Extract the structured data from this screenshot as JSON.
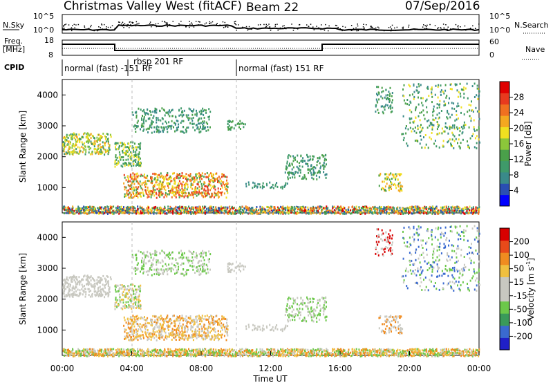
{
  "header": {
    "title": "Christmas Valley West (fitACF)",
    "beam": "Beam 22",
    "date": "07/Sep/2016"
  },
  "panels": {
    "nsky": {
      "label": "N.Sky",
      "ticks": [
        "10^5",
        "10^0"
      ],
      "right_ticks": [
        "10^5",
        "10^0"
      ],
      "right_label": "N.Search"
    },
    "freq": {
      "label_line1": "Freq.",
      "label_line2": "[MHz]",
      "ticks": [
        "18",
        "8"
      ],
      "right_ticks": [
        "60",
        "0"
      ],
      "right_label": "Nave"
    },
    "cpid": {
      "label": "CPID",
      "segments": [
        {
          "text": "normal (fast) -151 RF"
        },
        {
          "text": "rbsp 201 RF"
        },
        {
          "text": "normal (fast) 151 RF"
        }
      ]
    }
  },
  "colorbars": {
    "power": {
      "label": "Power [dB]",
      "ticks": [
        "28",
        "24",
        "20",
        "16",
        "12",
        "8",
        "4"
      ],
      "colors": [
        "#0000ff",
        "#2a4eb2",
        "#3a8a8a",
        "#3f9a6a",
        "#4aa04a",
        "#8cc63a",
        "#f0e020",
        "#f4a820",
        "#f07020",
        "#e83a1e",
        "#e00000"
      ]
    },
    "velocity": {
      "label": "Velocity [m s",
      "label_sup": "-1",
      "label_end": "]",
      "ticks": [
        "200",
        "100",
        "50",
        "15",
        "-15",
        "-50",
        "-100",
        "-200"
      ],
      "colors": [
        "#2020c8",
        "#3a6ad0",
        "#3a9a5a",
        "#6cc84a",
        "#c8c8c0",
        "#c8c8c0",
        "#f0c040",
        "#f08c20",
        "#e84a1a",
        "#d80000"
      ]
    }
  },
  "chart_data": [
    {
      "type": "heatmap",
      "title": "Power",
      "ylabel": "Slant Range [km]",
      "xlabel": "",
      "x_range_hours": [
        0,
        24
      ],
      "ylim": [
        180,
        4500
      ],
      "yticks": [
        "1000",
        "2000",
        "3000",
        "4000"
      ],
      "xticks": [
        "00:00",
        "04:00",
        "08:00",
        "12:00",
        "16:00",
        "20:00",
        "00:00"
      ],
      "colorbar": "Power [dB]"
    },
    {
      "type": "heatmap",
      "title": "Velocity",
      "ylabel": "Slant Range [km]",
      "xlabel": "Time UT",
      "x_range_hours": [
        0,
        24
      ],
      "ylim": [
        180,
        4500
      ],
      "yticks": [
        "1000",
        "2000",
        "3000",
        "4000"
      ],
      "xticks": [
        "00:00",
        "04:00",
        "08:00",
        "12:00",
        "16:00",
        "20:00",
        "00:00"
      ],
      "colorbar": "Velocity [m s-1]"
    }
  ]
}
